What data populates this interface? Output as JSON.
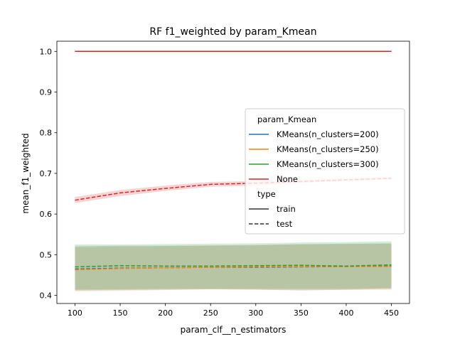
{
  "chart_data": {
    "type": "line",
    "title": "RF f1_weighted by param_Kmean",
    "xlabel": "param_clf__n_estimators",
    "ylabel": "mean_f1_weighted",
    "xlim": [
      80,
      470
    ],
    "ylim": [
      0.38,
      1.025
    ],
    "xticks": [
      100,
      150,
      200,
      250,
      300,
      350,
      400,
      450
    ],
    "yticks": [
      0.4,
      0.5,
      0.6,
      0.7,
      0.8,
      0.9,
      1.0
    ],
    "xtick_labels": [
      "100",
      "150",
      "200",
      "250",
      "300",
      "350",
      "400",
      "450"
    ],
    "ytick_labels": [
      "0.4",
      "0.5",
      "0.6",
      "0.7",
      "0.8",
      "0.9",
      "1.0"
    ],
    "grid": false,
    "legend": {
      "placement": "center-right",
      "hue_title": "param_Kmean",
      "style_title": "type",
      "style_entries": [
        "train",
        "test"
      ]
    },
    "x": [
      100,
      150,
      200,
      250,
      300,
      350,
      400,
      450
    ],
    "series": [
      {
        "name": "KMeans(n_clusters=200)",
        "color": "#1f77b4",
        "train": [
          1.0,
          1.0,
          1.0,
          1.0,
          1.0,
          1.0,
          1.0,
          1.0
        ],
        "test": [
          0.465,
          0.467,
          0.468,
          0.469,
          0.469,
          0.47,
          0.471,
          0.472
        ],
        "test_band_lower": [
          0.412,
          0.413,
          0.414,
          0.415,
          0.414,
          0.412,
          0.414,
          0.416
        ],
        "test_band_upper": [
          0.521,
          0.522,
          0.522,
          0.523,
          0.524,
          0.526,
          0.527,
          0.528
        ]
      },
      {
        "name": "KMeans(n_clusters=250)",
        "color": "#ff7f0e",
        "train": [
          1.0,
          1.0,
          1.0,
          1.0,
          1.0,
          1.0,
          1.0,
          1.0
        ],
        "test": [
          0.463,
          0.466,
          0.468,
          0.469,
          0.47,
          0.471,
          0.471,
          0.471
        ],
        "test_band_lower": [
          0.41,
          0.411,
          0.413,
          0.415,
          0.414,
          0.413,
          0.413,
          0.414
        ],
        "test_band_upper": [
          0.518,
          0.52,
          0.521,
          0.522,
          0.523,
          0.525,
          0.526,
          0.527
        ]
      },
      {
        "name": "KMeans(n_clusters=300)",
        "color": "#2ca02c",
        "train": [
          1.0,
          1.0,
          1.0,
          1.0,
          1.0,
          1.0,
          1.0,
          1.0
        ],
        "test": [
          0.47,
          0.473,
          0.472,
          0.472,
          0.473,
          0.474,
          0.472,
          0.475
        ],
        "test_band_lower": [
          0.414,
          0.415,
          0.416,
          0.416,
          0.416,
          0.416,
          0.416,
          0.418
        ],
        "test_band_upper": [
          0.525,
          0.525,
          0.526,
          0.527,
          0.528,
          0.53,
          0.531,
          0.533
        ]
      },
      {
        "name": "None",
        "color": "#d62728",
        "train": [
          1.0,
          1.0,
          1.0,
          1.0,
          1.0,
          1.0,
          1.0,
          1.0
        ],
        "test": [
          0.634,
          0.652,
          0.663,
          0.673,
          0.676,
          0.68,
          0.684,
          0.688
        ],
        "test_band_lower": [
          0.627,
          0.644,
          0.657,
          0.667,
          0.67,
          0.676,
          0.681,
          0.685
        ],
        "test_band_upper": [
          0.642,
          0.659,
          0.67,
          0.679,
          0.681,
          0.685,
          0.688,
          0.692
        ]
      }
    ]
  }
}
